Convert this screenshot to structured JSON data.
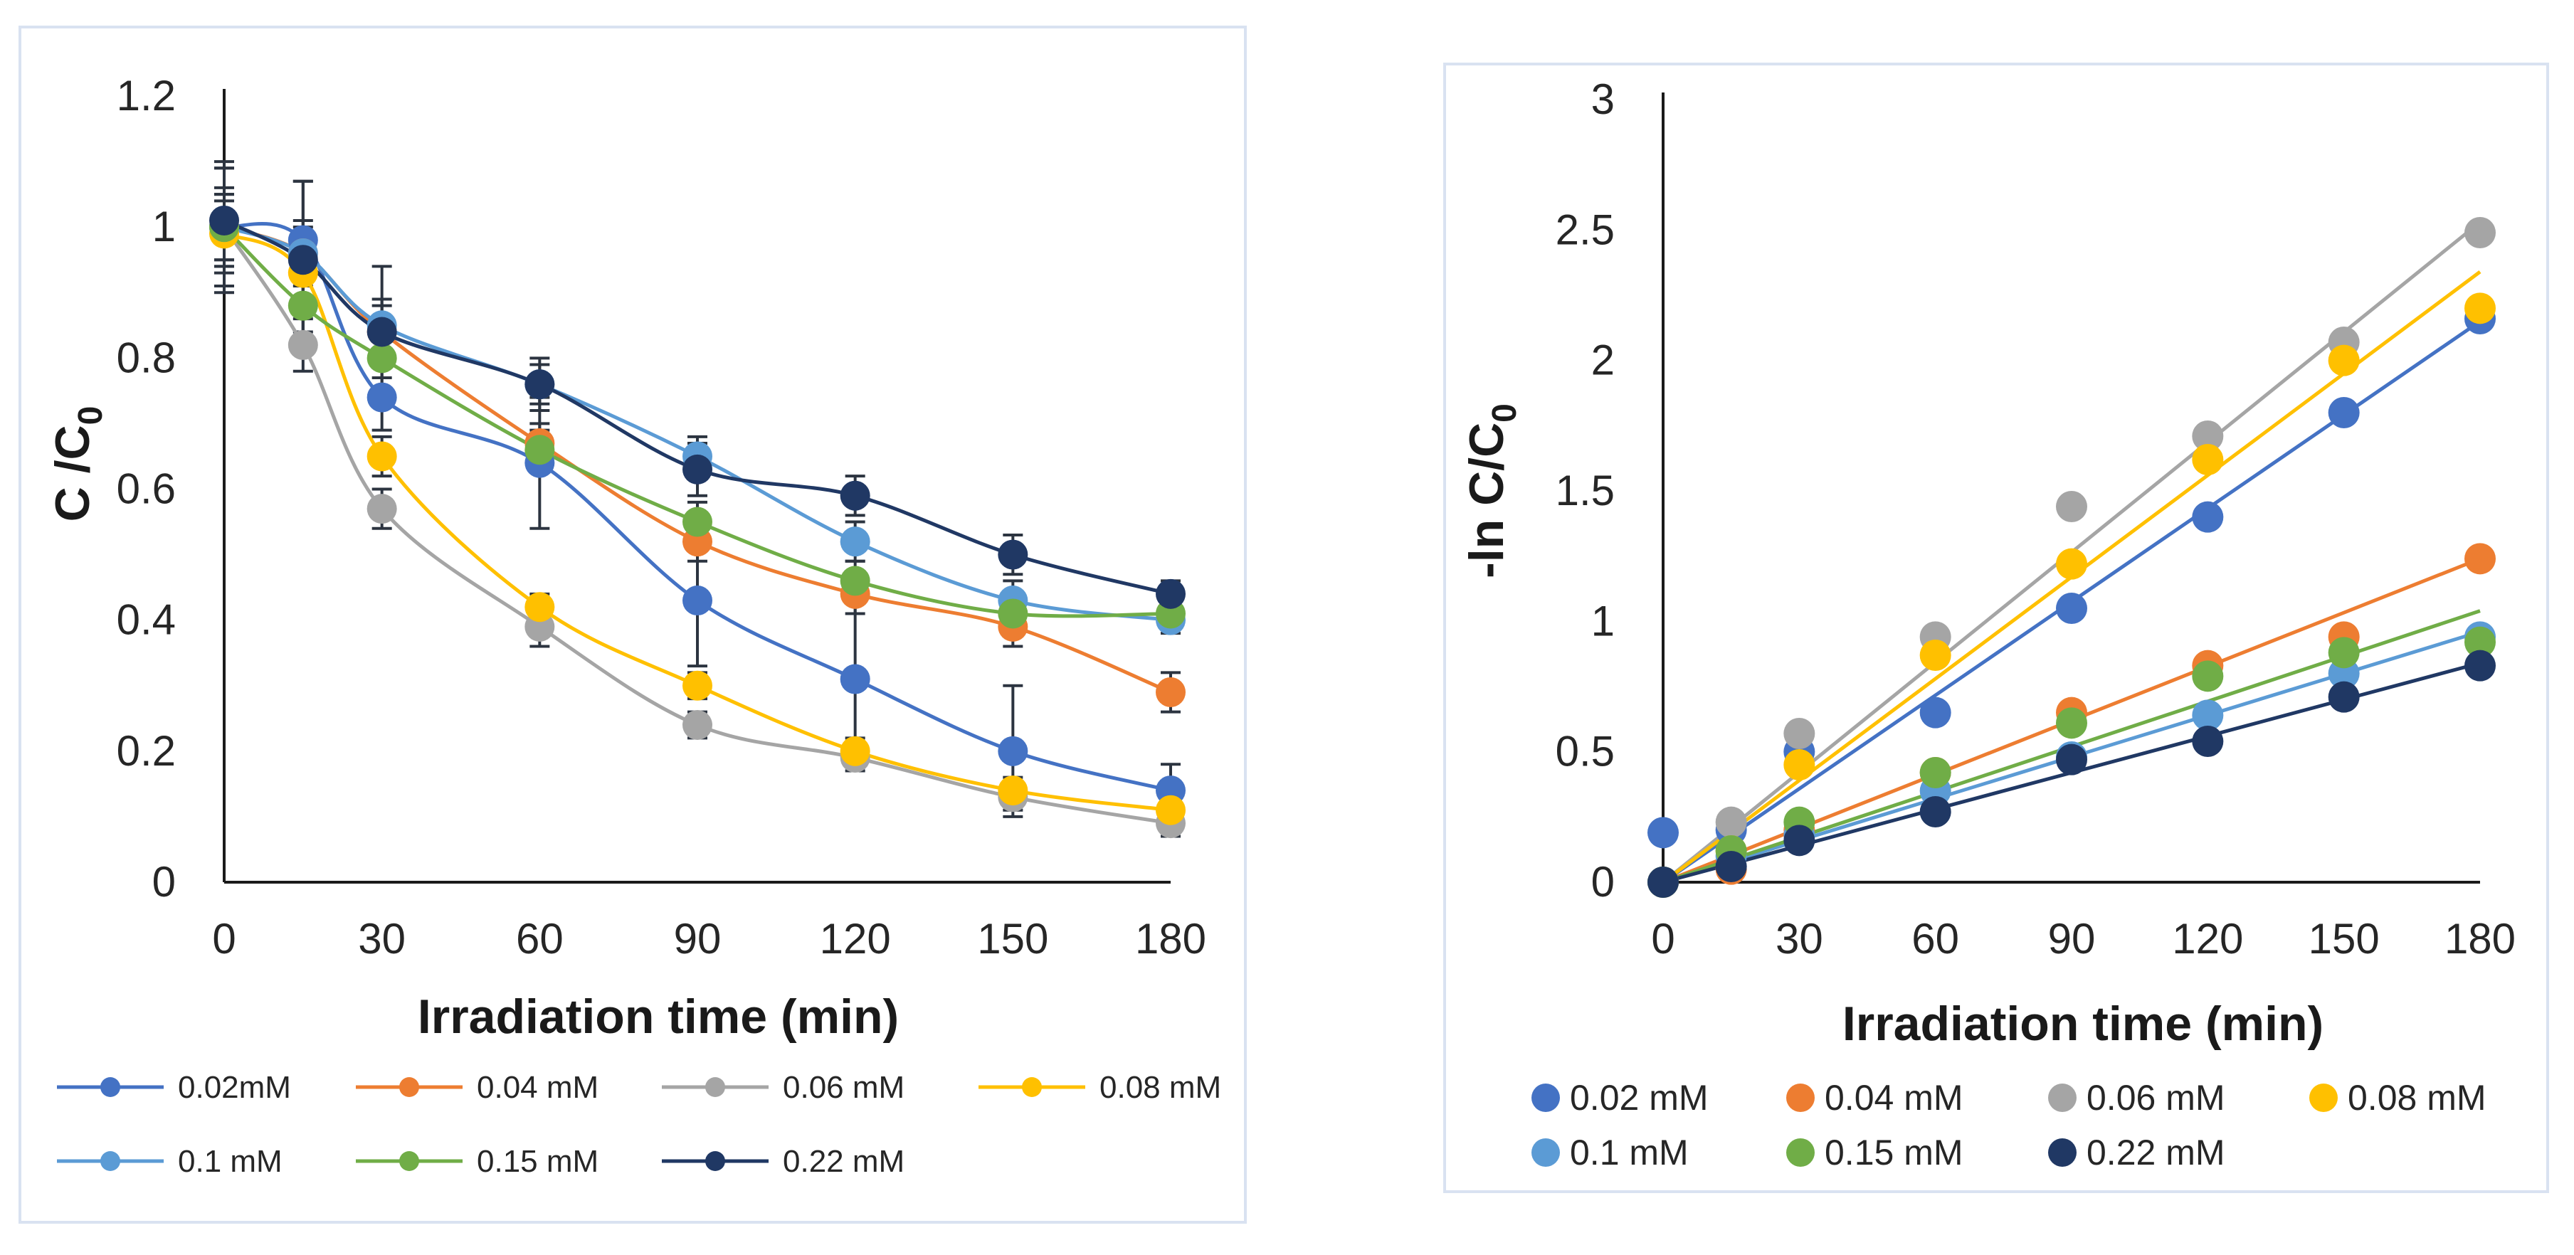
{
  "chart_data": [
    {
      "type": "line",
      "panel": "left",
      "title": "",
      "xlabel": "Irradiation time (min)",
      "ylabel": "C /C",
      "ylabel_subscript": "0",
      "xlim": [
        0,
        180
      ],
      "ylim": [
        0,
        1.2
      ],
      "x_ticks": [
        "0",
        "30",
        "60",
        "90",
        "120",
        "150",
        "180"
      ],
      "y_ticks": [
        "0",
        "0.2",
        "0.4",
        "0.6",
        "0.8",
        "1",
        "1.2"
      ],
      "x": [
        0,
        15,
        30,
        60,
        90,
        120,
        150,
        180
      ],
      "error_bars": true,
      "smooth": true,
      "legend_position": "bottom",
      "series": [
        {
          "name": "0.02mM",
          "color": "#4472C4",
          "values": [
            1.0,
            0.98,
            0.74,
            0.64,
            0.43,
            0.31,
            0.2,
            0.14
          ],
          "errors": [
            0.1,
            0.09,
            0.05,
            0.1,
            0.1,
            0.12,
            0.1,
            0.04
          ]
        },
        {
          "name": "0.04 mM",
          "color": "#ED7D31",
          "values": [
            1.0,
            0.96,
            0.84,
            0.67,
            0.52,
            0.44,
            0.39,
            0.29
          ],
          "errors": [
            0.09,
            0.04,
            0.04,
            0.03,
            0.03,
            0.03,
            0.03,
            0.03
          ]
        },
        {
          "name": "0.06 mM",
          "color": "#A5A5A5",
          "values": [
            1.0,
            0.82,
            0.57,
            0.39,
            0.24,
            0.19,
            0.13,
            0.09
          ],
          "errors": [
            0.05,
            0.04,
            0.03,
            0.03,
            0.02,
            0.02,
            0.02,
            0.02
          ]
        },
        {
          "name": "0.08 mM",
          "color": "#FFC000",
          "values": [
            0.99,
            0.93,
            0.65,
            0.42,
            0.3,
            0.2,
            0.14,
            0.11
          ],
          "errors": [
            0.05,
            0.04,
            0.03,
            0.02,
            0.02,
            0.02,
            0.02,
            0.02
          ]
        },
        {
          "name": "0.1 mM",
          "color": "#5B9BD5",
          "values": [
            1.0,
            0.96,
            0.85,
            0.76,
            0.65,
            0.52,
            0.43,
            0.4
          ],
          "errors": [
            0.06,
            0.05,
            0.04,
            0.03,
            0.03,
            0.03,
            0.03,
            0.02
          ]
        },
        {
          "name": "0.15 mM",
          "color": "#70AD47",
          "values": [
            1.0,
            0.88,
            0.8,
            0.66,
            0.55,
            0.46,
            0.41,
            0.41
          ],
          "errors": [
            0.05,
            0.04,
            0.03,
            0.03,
            0.03,
            0.03,
            0.02,
            0.02
          ]
        },
        {
          "name": "0.22 mM",
          "color": "#203864",
          "values": [
            1.01,
            0.95,
            0.84,
            0.76,
            0.63,
            0.59,
            0.5,
            0.44
          ],
          "errors": [
            0.08,
            0.12,
            0.1,
            0.04,
            0.04,
            0.03,
            0.03,
            0.02
          ]
        }
      ]
    },
    {
      "type": "scatter",
      "panel": "right",
      "title": "",
      "xlabel": "Irradiation time (min)",
      "ylabel": "-ln C/C",
      "ylabel_subscript": "0",
      "xlim": [
        0,
        180
      ],
      "ylim": [
        0,
        3
      ],
      "x_ticks": [
        "0",
        "30",
        "60",
        "90",
        "120",
        "150",
        "180"
      ],
      "y_ticks": [
        "0",
        "0.5",
        "1",
        "1.5",
        "2",
        "2.5",
        "3"
      ],
      "x": [
        0,
        15,
        30,
        60,
        90,
        120,
        150,
        180
      ],
      "trendline": "linear",
      "legend_position": "bottom",
      "series": [
        {
          "name": "0.02 mM",
          "color": "#4472C4",
          "values": [
            0.19,
            0.2,
            0.5,
            0.65,
            1.05,
            1.4,
            1.8,
            2.16
          ],
          "trend_end": 2.15
        },
        {
          "name": "0.04 mM",
          "color": "#ED7D31",
          "values": [
            0.0,
            0.05,
            0.2,
            0.42,
            0.65,
            0.83,
            0.94,
            1.24
          ],
          "trend_end": 1.24
        },
        {
          "name": "0.06 mM",
          "color": "#A5A5A5",
          "values": [
            0.0,
            0.23,
            0.57,
            0.94,
            1.44,
            1.71,
            2.07,
            2.49
          ],
          "trend_end": 2.53
        },
        {
          "name": "0.08 mM",
          "color": "#FFC000",
          "values": [
            0.0,
            0.12,
            0.45,
            0.87,
            1.22,
            1.62,
            2.0,
            2.2
          ],
          "trend_end": 2.34
        },
        {
          "name": "0.1 mM",
          "color": "#5B9BD5",
          "values": [
            0.0,
            0.1,
            0.18,
            0.35,
            0.48,
            0.64,
            0.8,
            0.94
          ],
          "trend_end": 0.96
        },
        {
          "name": "0.15 mM",
          "color": "#70AD47",
          "values": [
            0.0,
            0.12,
            0.23,
            0.42,
            0.61,
            0.79,
            0.88,
            0.92
          ],
          "trend_end": 1.04
        },
        {
          "name": "0.22 mM",
          "color": "#203864",
          "values": [
            0.0,
            0.06,
            0.16,
            0.27,
            0.47,
            0.54,
            0.71,
            0.83
          ],
          "trend_end": 0.84
        }
      ]
    }
  ]
}
